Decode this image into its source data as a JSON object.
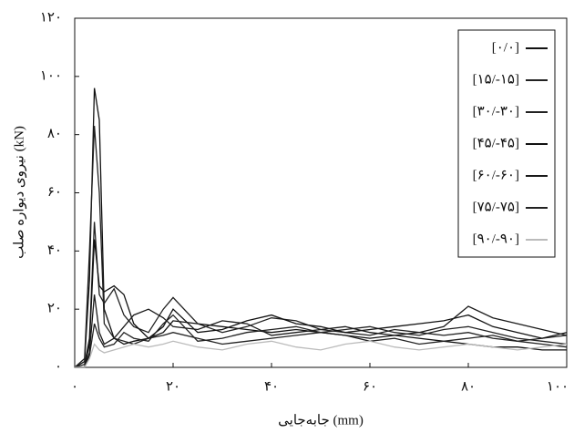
{
  "chart_data": {
    "type": "line",
    "xlabel": "جابه‌جایی (mm)",
    "ylabel": "نیروی دیواره صلب (kN)",
    "x": [
      0,
      2,
      3,
      4,
      5,
      6,
      8,
      10,
      12,
      15,
      18,
      20,
      25,
      30,
      35,
      40,
      45,
      50,
      55,
      60,
      65,
      70,
      75,
      80,
      85,
      90,
      95,
      100
    ],
    "series": [
      {
        "name": "[۰/۰]",
        "color": "#111111",
        "values": [
          0,
          2,
          30,
          96,
          85,
          20,
          10,
          8,
          9,
          10,
          12,
          16,
          15,
          14,
          13,
          12,
          13,
          12,
          11,
          10,
          11,
          10,
          9,
          8,
          7,
          7,
          6,
          6
        ]
      },
      {
        "name": "[۱۵/-۱۵]",
        "color": "#222222",
        "values": [
          0,
          3,
          40,
          83,
          60,
          15,
          10,
          9,
          8,
          10,
          11,
          12,
          10,
          8,
          9,
          10,
          11,
          12,
          13,
          14,
          12,
          11,
          13,
          14,
          12,
          10,
          9,
          8
        ]
      },
      {
        "name": "[۳۰/-۳۰]",
        "color": "#222222",
        "values": [
          0,
          1,
          10,
          50,
          25,
          22,
          27,
          18,
          14,
          12,
          20,
          24,
          15,
          12,
          14,
          17,
          16,
          13,
          12,
          11,
          13,
          12,
          11,
          12,
          10,
          9,
          10,
          11
        ]
      },
      {
        "name": "[۴۵/-۴۵]",
        "color": "#111111",
        "values": [
          0,
          0,
          8,
          44,
          28,
          26,
          28,
          25,
          15,
          10,
          14,
          20,
          12,
          13,
          16,
          18,
          15,
          14,
          12,
          13,
          14,
          15,
          16,
          18,
          14,
          12,
          10,
          12
        ]
      },
      {
        "name": "[۶۰/-۶۰]",
        "color": "#1a1a1a",
        "values": [
          0,
          0,
          5,
          25,
          12,
          8,
          10,
          14,
          18,
          20,
          17,
          14,
          13,
          16,
          15,
          11,
          12,
          13,
          14,
          12,
          11,
          12,
          14,
          21,
          17,
          15,
          13,
          11
        ]
      },
      {
        "name": "[۷۵/-۷۵]",
        "color": "#222222",
        "values": [
          0,
          0,
          4,
          15,
          10,
          7,
          8,
          12,
          10,
          9,
          15,
          18,
          9,
          10,
          12,
          13,
          14,
          12,
          11,
          9,
          10,
          8,
          9,
          10,
          11,
          9,
          8,
          7
        ]
      },
      {
        "name": "[۹۰/-۹۰]",
        "color": "#bbbbbb",
        "values": [
          0,
          0,
          3,
          8,
          6,
          5,
          6,
          7,
          8,
          7,
          8,
          9,
          7,
          6,
          8,
          9,
          7,
          6,
          8,
          9,
          7,
          6,
          7,
          8,
          7,
          6,
          7,
          8
        ]
      }
    ],
    "xlim": [
      0,
      100
    ],
    "xticks": [
      {
        "value": 0,
        "label": "۰"
      },
      {
        "value": 20,
        "label": "۲۰"
      },
      {
        "value": 40,
        "label": "۴۰"
      },
      {
        "value": 60,
        "label": "۶۰"
      },
      {
        "value": 80,
        "label": "۸۰"
      },
      {
        "value": 100,
        "label": "۱۰۰"
      }
    ],
    "ylim": [
      0,
      120
    ],
    "yticks": [
      {
        "value": 0,
        "label": "۰"
      },
      {
        "value": 20,
        "label": "۲۰"
      },
      {
        "value": 40,
        "label": "۴۰"
      },
      {
        "value": 60,
        "label": "۶۰"
      },
      {
        "value": 80,
        "label": "۸۰"
      },
      {
        "value": 100,
        "label": "۱۰۰"
      },
      {
        "value": 120,
        "label": "۱۲۰"
      }
    ],
    "legend": "upper right"
  }
}
